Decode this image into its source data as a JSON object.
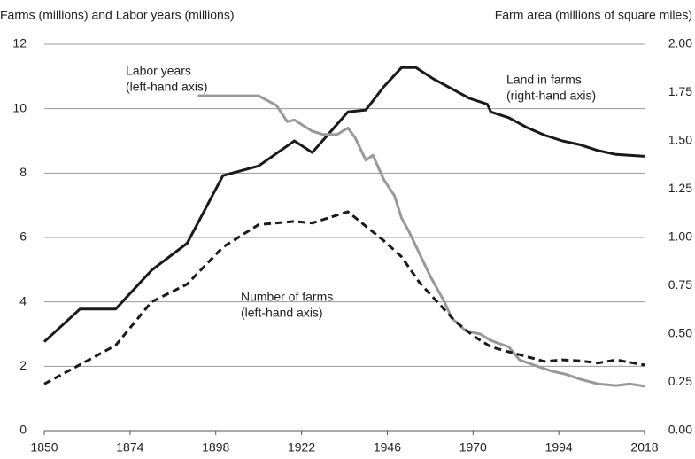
{
  "chart_data": {
    "type": "line",
    "y_label": "Farms (millions) and Labor years (millions)",
    "y2_label": "Farm area (millions of square miles)",
    "xlim": [
      1850,
      2018
    ],
    "xticks": [
      1850,
      1874,
      1898,
      1922,
      1946,
      1970,
      1994,
      2018
    ],
    "ylim": [
      0,
      12
    ],
    "yticks": [
      0,
      2,
      4,
      6,
      8,
      10,
      12
    ],
    "y2lim": [
      0,
      2
    ],
    "y2ticks": [
      {
        "value": 0,
        "label": "0.00"
      },
      {
        "value": 0.25,
        "label": "0.25"
      },
      {
        "value": 0.5,
        "label": "0.50"
      },
      {
        "value": 0.75,
        "label": "0.75"
      },
      {
        "value": 1,
        "label": "1.00"
      },
      {
        "value": 1.25,
        "label": "1.25"
      },
      {
        "value": 1.5,
        "label": "1.50"
      },
      {
        "value": 1.75,
        "label": "1.75"
      },
      {
        "value": 2,
        "label": "2.00"
      }
    ],
    "grid": true,
    "annotations": [
      [
        "Labor years",
        "(left-hand axis)"
      ],
      [
        "Land in farms",
        "(right-hand axis)"
      ],
      [
        "Number of farms",
        "(left-hand axis)"
      ]
    ],
    "series": [
      {
        "color": "#1a1a1a",
        "dash": "solid",
        "axis": "y2",
        "x": [
          1850,
          1860,
          1870,
          1880,
          1890,
          1900,
          1910,
          1920,
          1925,
          1935,
          1940,
          1945,
          1950,
          1954,
          1959,
          1964,
          1969,
          1974,
          1975,
          1980,
          1985,
          1990,
          1995,
          2000,
          2005,
          2010,
          2018
        ],
        "values": [
          0.46,
          0.63,
          0.63,
          0.83,
          0.97,
          1.32,
          1.37,
          1.5,
          1.44,
          1.65,
          1.66,
          1.78,
          1.88,
          1.88,
          1.82,
          1.77,
          1.72,
          1.69,
          1.65,
          1.62,
          1.57,
          1.53,
          1.5,
          1.48,
          1.45,
          1.43,
          1.42
        ]
      },
      {
        "color": "#999999",
        "dash": "solid",
        "axis": "y",
        "x": [
          1893,
          1910,
          1915,
          1918,
          1920,
          1925,
          1928,
          1932,
          1935,
          1937,
          1940,
          1942,
          1945,
          1948,
          1950,
          1952,
          1955,
          1958,
          1962,
          1964,
          1968,
          1972,
          1975,
          1980,
          1983,
          1988,
          1992,
          1996,
          2000,
          2005,
          2010,
          2014,
          2018
        ],
        "values": [
          10.4,
          10.4,
          10.1,
          9.6,
          9.65,
          9.3,
          9.2,
          9.2,
          9.4,
          9.1,
          8.4,
          8.55,
          7.8,
          7.3,
          6.6,
          6.2,
          5.5,
          4.8,
          4.0,
          3.5,
          3.1,
          3.0,
          2.8,
          2.6,
          2.2,
          2.0,
          1.85,
          1.75,
          1.6,
          1.45,
          1.4,
          1.45,
          1.38
        ]
      },
      {
        "color": "#1a1a1a",
        "dash": "dashed",
        "axis": "y",
        "x": [
          1850,
          1860,
          1870,
          1880,
          1890,
          1900,
          1910,
          1920,
          1925,
          1935,
          1940,
          1945,
          1950,
          1955,
          1960,
          1965,
          1970,
          1975,
          1980,
          1985,
          1990,
          1995,
          2000,
          2005,
          2010,
          2018
        ],
        "values": [
          1.45,
          2.05,
          2.65,
          4.0,
          4.55,
          5.7,
          6.4,
          6.5,
          6.45,
          6.8,
          6.35,
          5.9,
          5.4,
          4.6,
          4.0,
          3.4,
          2.95,
          2.6,
          2.45,
          2.3,
          2.15,
          2.2,
          2.17,
          2.1,
          2.2,
          2.04
        ]
      }
    ]
  }
}
